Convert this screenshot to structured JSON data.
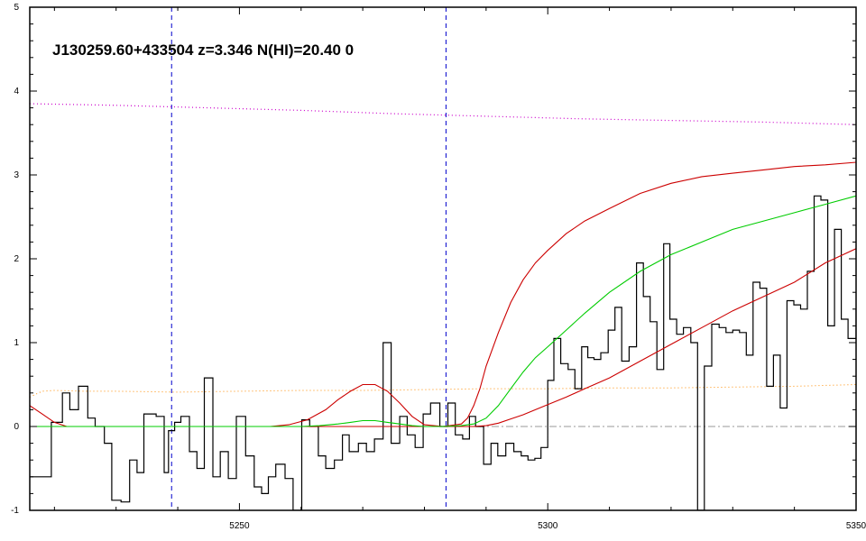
{
  "chart_data": {
    "type": "line",
    "title": "J130259.60+433504 z=3.346 N(HI)=20.40 0",
    "xlabel": "",
    "ylabel": "",
    "xlim": [
      5216,
      5350
    ],
    "ylim": [
      -1,
      5
    ],
    "grid": false,
    "x_ticks": [
      5250,
      5300,
      5350
    ],
    "y_ticks": [
      -1,
      0,
      1,
      2,
      3,
      4,
      5
    ],
    "vlines": [
      5239,
      5283.5
    ],
    "hline": 0,
    "colors": {
      "flux": "#000000",
      "model": "#00cc00",
      "model_bounds": "#cc0000",
      "continuum": "#cc00cc",
      "error": "#ff8c00",
      "vlines": "#0000cc",
      "zero_line": "#999999"
    },
    "flux": {
      "x": [
        5216,
        5219.5,
        5221.3,
        5222.5,
        5223.9,
        5225.4,
        5226.6,
        5228.1,
        5229.3,
        5230.8,
        5232.2,
        5233.4,
        5234.5,
        5236.5,
        5237.8,
        5238.5,
        5239.5,
        5240.5,
        5241.9,
        5243.1,
        5244.3,
        5245.7,
        5246.9,
        5248.2,
        5249.5,
        5251,
        5252.4,
        5253.6,
        5254.7,
        5255.9,
        5257.4,
        5258.7,
        5260.1,
        5261.4,
        5262.8,
        5264,
        5265.4,
        5266.7,
        5267.8,
        5269.3,
        5270.6,
        5271.9,
        5273.3,
        5274.6,
        5276,
        5277.2,
        5278.5,
        5279.8,
        5281,
        5282.5,
        5283.8,
        5285,
        5286.2,
        5287.3,
        5288.3,
        5289.6,
        5290.8,
        5291.9,
        5293.2,
        5294.5,
        5295.7,
        5296.8,
        5297.9,
        5298.9,
        5300,
        5301,
        5302.1,
        5303.3,
        5304.4,
        5305.5,
        5306.5,
        5307.5,
        5308.6,
        5309.8,
        5310.9,
        5312,
        5313.2,
        5314.4,
        5315.5,
        5316.6,
        5317.7,
        5318.8,
        5319.8,
        5320.9,
        5322,
        5323.2,
        5324.3,
        5325.4,
        5326.6,
        5327.8,
        5328.9,
        5330,
        5331.1,
        5332.2,
        5333.3,
        5334.4,
        5335.5,
        5336.6,
        5337.7,
        5338.8,
        5339.9,
        5341,
        5342.1,
        5343.2,
        5344.3,
        5345.4,
        5346.5,
        5347.6,
        5348.7,
        5350
      ],
      "y": [
        -0.6,
        0.05,
        0.4,
        0.2,
        0.48,
        0.1,
        0,
        -0.2,
        -0.88,
        -0.9,
        -0.4,
        -0.55,
        0.15,
        0.12,
        -0.55,
        -0.05,
        0.05,
        0.12,
        -0.3,
        -0.5,
        0.58,
        -0.6,
        -0.3,
        -0.62,
        0.12,
        -0.35,
        -0.72,
        -0.8,
        -0.6,
        -0.45,
        -0.62,
        -1,
        0.08,
        0,
        -0.35,
        -0.5,
        -0.4,
        -0.1,
        -0.3,
        -0.2,
        -0.3,
        -0.15,
        1.0,
        -0.2,
        0.12,
        -0.1,
        -0.25,
        0.15,
        0.28,
        0,
        0.28,
        -0.1,
        -0.15,
        0.12,
        0,
        -0.45,
        -0.2,
        -0.35,
        -0.2,
        -0.3,
        -0.35,
        -0.4,
        -0.38,
        -0.25,
        0.55,
        1.05,
        0.75,
        0.68,
        0.45,
        0.95,
        0.82,
        0.8,
        0.88,
        1.15,
        1.42,
        0.78,
        0.95,
        1.95,
        1.55,
        1.25,
        0.68,
        2.18,
        1.28,
        1.1,
        1.18,
        1.0,
        -1.0,
        0.72,
        1.22,
        1.18,
        1.12,
        1.15,
        1.12,
        0.85,
        1.72,
        1.65,
        0.48,
        0.85,
        0.22,
        1.5,
        1.45,
        1.4,
        1.85,
        2.75,
        2.7,
        1.2,
        2.35,
        1.28,
        1.05,
        1.4
      ]
    },
    "model": {
      "x": [
        5216,
        5220,
        5225,
        5230,
        5235,
        5240,
        5245,
        5250,
        5255,
        5260,
        5263,
        5266,
        5268,
        5270,
        5272,
        5274,
        5276,
        5278,
        5280,
        5283,
        5286,
        5288,
        5290,
        5292,
        5294,
        5296,
        5298,
        5300,
        5303,
        5306,
        5310,
        5315,
        5320,
        5325,
        5330,
        5335,
        5340,
        5345,
        5350
      ],
      "y": [
        0,
        0,
        0,
        0,
        0,
        0,
        0,
        0,
        0,
        0,
        0.01,
        0.03,
        0.05,
        0.07,
        0.07,
        0.05,
        0.03,
        0.01,
        0,
        0,
        0.01,
        0.03,
        0.1,
        0.25,
        0.45,
        0.65,
        0.82,
        0.95,
        1.15,
        1.35,
        1.6,
        1.85,
        2.05,
        2.2,
        2.35,
        2.45,
        2.55,
        2.65,
        2.75
      ]
    },
    "model_upper": {
      "x": [
        5216,
        5218,
        5220,
        5222,
        5225,
        5230,
        5235,
        5240,
        5245,
        5250,
        5255,
        5258,
        5261,
        5264,
        5266,
        5268,
        5270,
        5272,
        5274,
        5276,
        5278,
        5280,
        5283,
        5286,
        5287,
        5288,
        5289,
        5290,
        5292,
        5294,
        5296,
        5298,
        5300,
        5303,
        5306,
        5310,
        5315,
        5320,
        5325,
        5330,
        5335,
        5340,
        5345,
        5350
      ],
      "y": [
        0.25,
        0.15,
        0.05,
        0,
        0,
        0,
        0,
        0,
        0,
        0,
        0,
        0.02,
        0.08,
        0.2,
        0.32,
        0.42,
        0.5,
        0.5,
        0.42,
        0.28,
        0.12,
        0.02,
        0,
        0.03,
        0.1,
        0.25,
        0.45,
        0.72,
        1.12,
        1.48,
        1.75,
        1.95,
        2.1,
        2.3,
        2.45,
        2.6,
        2.78,
        2.9,
        2.98,
        3.02,
        3.06,
        3.1,
        3.12,
        3.15
      ]
    },
    "model_lower": {
      "x": [
        5216,
        5220,
        5225,
        5230,
        5235,
        5240,
        5245,
        5250,
        5255,
        5260,
        5265,
        5270,
        5275,
        5280,
        5283,
        5286,
        5288,
        5290,
        5292,
        5294,
        5296,
        5298,
        5300,
        5303,
        5306,
        5310,
        5315,
        5320,
        5325,
        5330,
        5335,
        5340,
        5345,
        5350
      ],
      "y": [
        0,
        0,
        0,
        0,
        0,
        0,
        0,
        0,
        0,
        0,
        0,
        0,
        0,
        0,
        0,
        0,
        0,
        0.01,
        0.04,
        0.09,
        0.14,
        0.2,
        0.26,
        0.35,
        0.45,
        0.58,
        0.78,
        0.98,
        1.18,
        1.38,
        1.55,
        1.72,
        1.95,
        2.12
      ]
    },
    "continuum": {
      "x": [
        5216,
        5230,
        5245,
        5260,
        5275,
        5290,
        5305,
        5320,
        5335,
        5350
      ],
      "y": [
        3.85,
        3.83,
        3.8,
        3.77,
        3.73,
        3.7,
        3.67,
        3.65,
        3.63,
        3.6
      ]
    },
    "error": {
      "x": [
        5216,
        5218,
        5220,
        5225,
        5230,
        5240,
        5250,
        5260,
        5270,
        5280,
        5290,
        5300,
        5310,
        5320,
        5330,
        5340,
        5350
      ],
      "y": [
        0.35,
        0.42,
        0.43,
        0.42,
        0.42,
        0.41,
        0.42,
        0.43,
        0.43,
        0.44,
        0.45,
        0.45,
        0.46,
        0.46,
        0.47,
        0.48,
        0.5
      ]
    }
  }
}
